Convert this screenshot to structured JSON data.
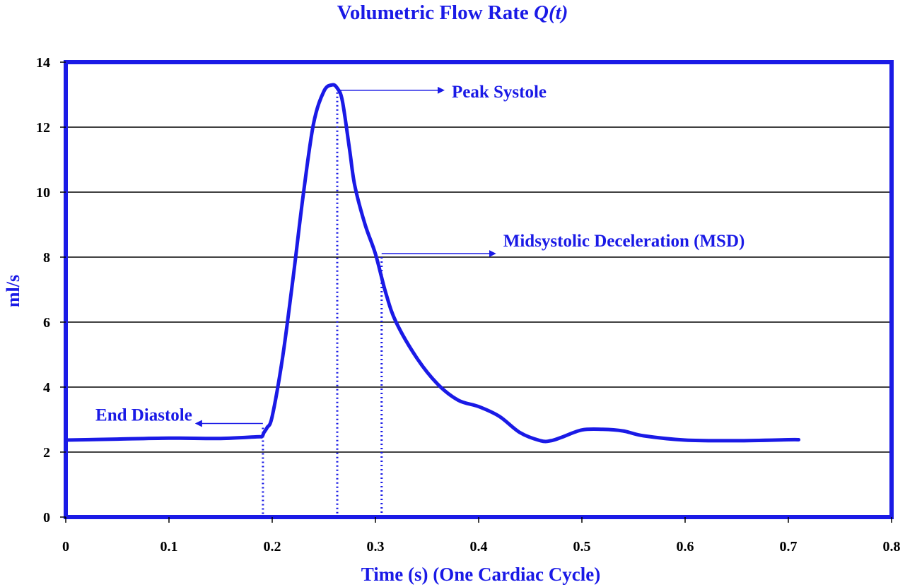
{
  "chart_data": {
    "type": "line",
    "title": "Volumetric Flow Rate ",
    "title_italic": "Q(t)",
    "xlabel": "Time (s) (One Cardiac Cycle)",
    "ylabel": "ml/s",
    "xlim": [
      0,
      0.8
    ],
    "ylim": [
      0,
      14
    ],
    "x_ticks": [
      0,
      0.1,
      0.2,
      0.3,
      0.4,
      0.5,
      0.6,
      0.7,
      0.8
    ],
    "x_tick_labels": [
      "0",
      "0.1",
      "0.2",
      "0.3",
      "0.4",
      "0.5",
      "0.6",
      "0.7",
      "0.8"
    ],
    "y_ticks": [
      0,
      2,
      4,
      6,
      8,
      10,
      12,
      14
    ],
    "y_tick_labels": [
      "0",
      "2",
      "4",
      "6",
      "8",
      "10",
      "12",
      "14"
    ],
    "grid": "horizontal",
    "colors": {
      "line": "#1a1ae6",
      "frame": "#1a1ae6",
      "text": "#1a1ae6",
      "grid": "#000000"
    },
    "series": [
      {
        "x": [
          0,
          0.05,
          0.1,
          0.15,
          0.185,
          0.19,
          0.192,
          0.195,
          0.2,
          0.21,
          0.22,
          0.23,
          0.24,
          0.25,
          0.258,
          0.263,
          0.268,
          0.275,
          0.28,
          0.29,
          0.3,
          0.31,
          0.32,
          0.34,
          0.36,
          0.38,
          0.4,
          0.42,
          0.44,
          0.46,
          0.47,
          0.48,
          0.5,
          0.52,
          0.54,
          0.56,
          0.6,
          0.65,
          0.7,
          0.71
        ],
        "y": [
          2.37,
          2.4,
          2.43,
          2.42,
          2.47,
          2.48,
          2.6,
          2.75,
          3.1,
          4.9,
          7.3,
          9.9,
          12.1,
          13.1,
          13.3,
          13.2,
          12.8,
          11.3,
          10.2,
          9.0,
          8.1,
          6.9,
          6.0,
          4.9,
          4.1,
          3.6,
          3.4,
          3.1,
          2.6,
          2.35,
          2.35,
          2.45,
          2.68,
          2.7,
          2.65,
          2.5,
          2.37,
          2.35,
          2.38,
          2.38
        ]
      }
    ],
    "annotations": [
      {
        "label": "Peak Systole",
        "x": 0.263,
        "y": 13.2,
        "direction": "right"
      },
      {
        "label": "Midsystolic Deceleration  (MSD)",
        "x": 0.306,
        "y": 8.0,
        "direction": "right"
      },
      {
        "label": "End Diastole",
        "x": 0.191,
        "y": 2.75,
        "direction": "left"
      }
    ]
  }
}
